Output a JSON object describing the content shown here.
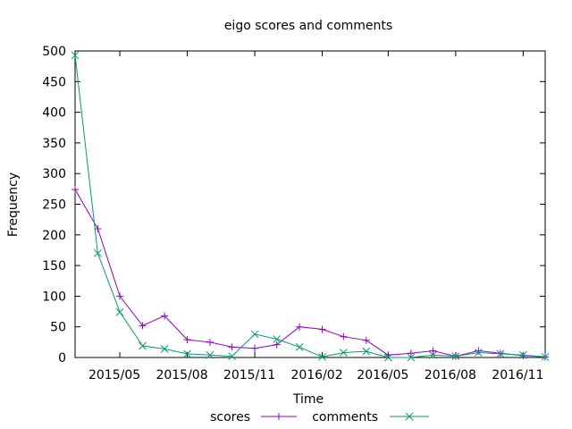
{
  "chart_data": {
    "type": "line",
    "title": "eigo scores and comments",
    "xlabel": "Time",
    "ylabel": "Frequency",
    "ylim": [
      0,
      500
    ],
    "yticks": [
      0,
      50,
      100,
      150,
      200,
      250,
      300,
      350,
      400,
      450,
      500
    ],
    "xlim": [
      "2015-03-01",
      "2016-12-01"
    ],
    "xticks": [
      {
        "date": "2015-05-01",
        "label": "2015/05"
      },
      {
        "date": "2015-08-01",
        "label": "2015/08"
      },
      {
        "date": "2015-11-01",
        "label": "2015/11"
      },
      {
        "date": "2016-02-01",
        "label": "2016/02"
      },
      {
        "date": "2016-05-01",
        "label": "2016/05"
      },
      {
        "date": "2016-08-01",
        "label": "2016/08"
      },
      {
        "date": "2016-11-01",
        "label": "2016/11"
      }
    ],
    "x": [
      "2015-03-01",
      "2015-04-01",
      "2015-05-01",
      "2015-06-01",
      "2015-07-01",
      "2015-08-01",
      "2015-09-01",
      "2015-10-01",
      "2015-11-01",
      "2015-12-01",
      "2016-01-01",
      "2016-02-01",
      "2016-03-01",
      "2016-04-01",
      "2016-05-01",
      "2016-06-01",
      "2016-07-01",
      "2016-08-01",
      "2016-09-01",
      "2016-10-01",
      "2016-11-01",
      "2016-12-01"
    ],
    "series": [
      {
        "name": "scores",
        "color": "#9400d3",
        "marker": "plus",
        "values": [
          274,
          210,
          100,
          52,
          68,
          29,
          25,
          17,
          15,
          21,
          50,
          46,
          34,
          28,
          4,
          7,
          11,
          2,
          11,
          7,
          3,
          1
        ]
      },
      {
        "name": "comments",
        "color": "#009e73",
        "marker": "cross",
        "values": [
          493,
          170,
          74,
          19,
          14,
          6,
          4,
          2,
          38,
          30,
          17,
          1,
          8,
          10,
          0,
          0,
          4,
          2,
          8,
          6,
          4,
          1
        ]
      }
    ],
    "grid": false,
    "legend_position": "bottom-center"
  }
}
